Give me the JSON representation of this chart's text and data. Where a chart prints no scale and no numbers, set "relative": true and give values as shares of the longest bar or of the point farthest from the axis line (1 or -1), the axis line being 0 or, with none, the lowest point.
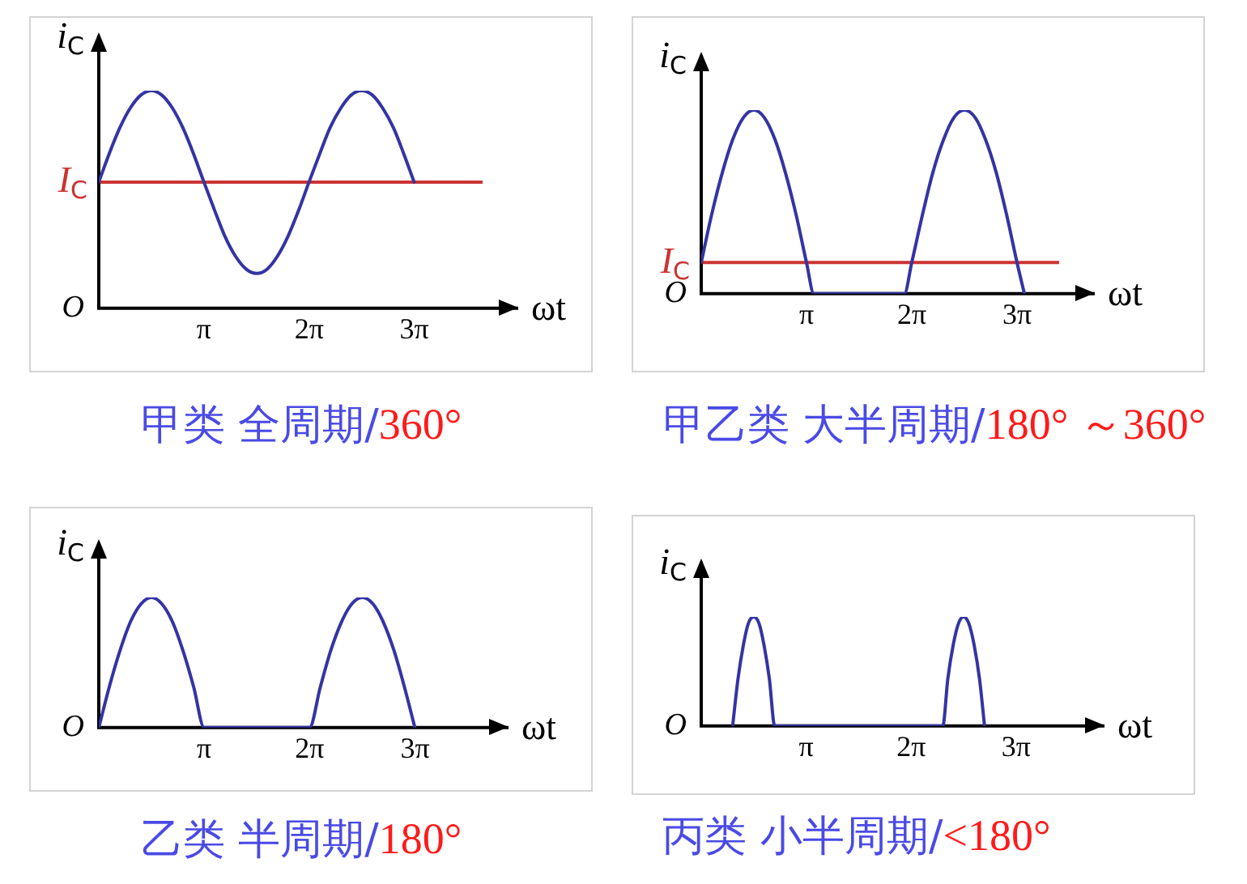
{
  "chart_data": [
    {
      "type": "line",
      "title": "甲类 全周期/360°",
      "xlabel": "ωt",
      "ylabel": "i$_{C}$",
      "relative": true,
      "xlim": [
        0,
        12.53
      ],
      "tick_labels": "x",
      "xticks": [
        {
          "value": 3.1416,
          "label": "π"
        },
        {
          "value": 6.2832,
          "label": "2π"
        },
        {
          "value": 9.4248,
          "label": "3π"
        }
      ],
      "x": [
        0,
        0.31,
        0.63,
        0.94,
        1.26,
        1.57,
        1.88,
        2.2,
        2.51,
        2.83,
        3.14,
        3.46,
        3.77,
        4.08,
        4.4,
        4.71,
        5.03,
        5.34,
        5.65,
        5.97,
        6.28,
        6.6,
        6.91,
        7.23,
        7.54,
        7.85,
        8.17,
        8.48,
        8.8,
        9.11,
        9.42
      ],
      "series": [
        {
          "color": "#3434a4",
          "values": [
            0.58,
            0.71,
            0.83,
            0.92,
            0.98,
            1,
            0.98,
            0.92,
            0.83,
            0.71,
            0.58,
            0.45,
            0.33,
            0.24,
            0.18,
            0.16,
            0.18,
            0.24,
            0.33,
            0.45,
            0.58,
            0.71,
            0.83,
            0.92,
            0.98,
            1,
            0.98,
            0.92,
            0.83,
            0.71,
            0.58
          ]
        }
      ],
      "ref_lines": [
        {
          "axis": "y",
          "value": 0.58,
          "label": "I$_{C}$",
          "color": "#cc3333"
        }
      ],
      "annotations": [
        "O"
      ]
    },
    {
      "type": "line",
      "title": "甲乙类 大半周期/180° ～360°",
      "xlabel": "ωt",
      "ylabel": "i$_{C}$",
      "relative": true,
      "xlim": [
        0,
        11.74
      ],
      "tick_labels": "x",
      "xticks": [
        {
          "value": 3.1416,
          "label": "π"
        },
        {
          "value": 6.2832,
          "label": "2π"
        },
        {
          "value": 9.4248,
          "label": "3π"
        }
      ],
      "x": [
        0,
        0.31,
        0.63,
        0.94,
        1.26,
        1.57,
        1.88,
        2.2,
        2.51,
        2.83,
        3.14,
        3.36,
        6.06,
        6.28,
        6.6,
        6.91,
        7.23,
        7.54,
        7.85,
        8.17,
        8.48,
        8.8,
        9.11,
        9.42,
        9.64
      ],
      "series": [
        {
          "color": "#3434a4",
          "values": [
            0.17,
            0.43,
            0.66,
            0.84,
            0.96,
            1,
            0.96,
            0.84,
            0.66,
            0.43,
            0.17,
            0,
            0,
            0.17,
            0.43,
            0.66,
            0.84,
            0.96,
            1,
            0.96,
            0.84,
            0.66,
            0.43,
            0.17,
            0
          ]
        }
      ],
      "ref_lines": [
        {
          "axis": "y",
          "value": 0.17,
          "label": "I$_{C}$",
          "color": "#cc3333"
        }
      ],
      "annotations": [
        "O"
      ]
    },
    {
      "type": "line",
      "title": "乙类 半周期/180°",
      "xlabel": "ωt",
      "ylabel": "i$_{C}$",
      "relative": true,
      "xlim": [
        0,
        12.21
      ],
      "tick_labels": "x",
      "xticks": [
        {
          "value": 3.1416,
          "label": "π"
        },
        {
          "value": 6.2832,
          "label": "2π"
        },
        {
          "value": 9.4248,
          "label": "3π"
        }
      ],
      "x": [
        0,
        0.31,
        0.63,
        0.94,
        1.26,
        1.57,
        1.88,
        2.2,
        2.51,
        2.83,
        3.14,
        6.28,
        6.6,
        6.91,
        7.23,
        7.54,
        7.85,
        8.17,
        8.48,
        8.8,
        9.11,
        9.42
      ],
      "series": [
        {
          "color": "#3434a4",
          "values": [
            0,
            0.31,
            0.59,
            0.81,
            0.95,
            1,
            0.95,
            0.81,
            0.59,
            0.31,
            0,
            0,
            0.31,
            0.59,
            0.81,
            0.95,
            1,
            0.95,
            0.81,
            0.59,
            0.31,
            0
          ]
        }
      ],
      "annotations": [
        "O"
      ]
    },
    {
      "type": "line",
      "title": "丙类 小半周期/<180°",
      "xlabel": "ωt",
      "ylabel": "i$_{C}$",
      "relative": true,
      "xlim": [
        0,
        12.07
      ],
      "tick_labels": "x",
      "xticks": [
        {
          "value": 3.1416,
          "label": "π"
        },
        {
          "value": 6.2832,
          "label": "2π"
        },
        {
          "value": 9.4248,
          "label": "3π"
        }
      ],
      "x": [
        0.94,
        1.1,
        1.26,
        1.41,
        1.57,
        1.73,
        1.88,
        2.04,
        2.2,
        7.23,
        7.38,
        7.54,
        7.7,
        7.85,
        8.01,
        8.17,
        8.33,
        8.48
      ],
      "series": [
        {
          "color": "#3434a4",
          "values": [
            0,
            0.43,
            0.74,
            0.94,
            1,
            0.94,
            0.74,
            0.43,
            0,
            0,
            0.43,
            0.74,
            0.94,
            1,
            0.94,
            0.74,
            0.43,
            0
          ]
        }
      ],
      "annotations": [
        "O"
      ]
    }
  ]
}
